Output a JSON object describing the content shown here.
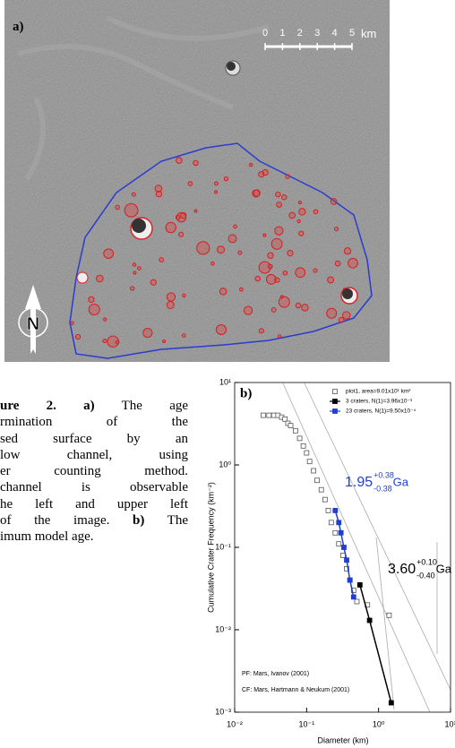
{
  "panel_a": {
    "label": "a)",
    "scale_ticks": [
      0,
      1,
      2,
      3,
      4,
      5
    ],
    "scale_unit": "km",
    "north": "N"
  },
  "caption": [
    [
      "ure 2.",
      "a)",
      "The age"
    ],
    [
      "rmination of the"
    ],
    [
      "sed surface by an"
    ],
    [
      "low channel, using"
    ],
    [
      "er counting method."
    ],
    [
      "channel is observable"
    ],
    [
      "he left and upper left"
    ],
    [
      "of the image.",
      "b)",
      "The"
    ],
    [
      "imum model age."
    ]
  ],
  "chart_data": {
    "type": "scatter",
    "panel_label": "b)",
    "xlabel": "Diameter (km)",
    "ylabel": "Cumulative Crater Frequency (km⁻²)",
    "xscale": "log",
    "yscale": "log",
    "xlim": [
      0.01,
      10
    ],
    "ylim": [
      0.001,
      10
    ],
    "xticks": [
      {
        "value": 0.01,
        "label": "10⁻²"
      },
      {
        "value": 0.1,
        "label": "10⁻¹"
      },
      {
        "value": 1,
        "label": "10⁰"
      },
      {
        "value": 10,
        "label": "10¹"
      }
    ],
    "yticks": [
      {
        "value": 0.001,
        "label": "10⁻³"
      },
      {
        "value": 0.01,
        "label": "10⁻²"
      },
      {
        "value": 0.1,
        "label": "10⁻¹"
      },
      {
        "value": 1,
        "label": "10⁰"
      },
      {
        "value": 10,
        "label": "10¹"
      }
    ],
    "series": [
      {
        "name": "plot1, area=9.01x10¹ km²",
        "color": "#555555",
        "marker": "square-open",
        "line": false,
        "x": [
          0.025,
          0.03,
          0.035,
          0.04,
          0.045,
          0.05,
          0.055,
          0.06,
          0.07,
          0.08,
          0.09,
          0.1,
          0.11,
          0.125,
          0.14,
          0.16,
          0.18,
          0.2,
          0.22,
          0.25,
          0.28,
          0.32,
          0.36,
          0.4,
          0.45,
          0.5,
          0.7,
          1.4
        ],
        "values": [
          4,
          4,
          4,
          4,
          3.8,
          3.6,
          3.2,
          3,
          2.6,
          2.1,
          1.7,
          1.4,
          1.1,
          0.85,
          0.65,
          0.5,
          0.38,
          0.28,
          0.2,
          0.15,
          0.11,
          0.08,
          0.055,
          0.04,
          0.03,
          0.022,
          0.02,
          0.015
        ]
      },
      {
        "name": "3 craters, N(1)=3.96x10⁻³",
        "color": "#000000",
        "marker": "square",
        "line": true,
        "x": [
          0.55,
          0.75,
          1.5
        ],
        "values": [
          0.035,
          0.013,
          0.0013
        ]
      },
      {
        "name": "23 craters, N(1)=9.50x10⁻⁴",
        "color": "#1f3fd0",
        "marker": "square",
        "line": true,
        "x": [
          0.25,
          0.28,
          0.3,
          0.33,
          0.36,
          0.4,
          0.45
        ],
        "values": [
          0.28,
          0.2,
          0.15,
          0.1,
          0.07,
          0.04,
          0.025
        ]
      }
    ],
    "annotations": [
      {
        "text": "1.95",
        "plus": "+0.38",
        "minus": "-0.38",
        "unit": "Ga",
        "color": "#1f3fd0"
      },
      {
        "text": "3.60",
        "plus": "+0.10",
        "minus": "-0.40",
        "unit": "Ga",
        "color": "#000000"
      }
    ],
    "notes": [
      "PF: Mars, Ivanov (2001)",
      "CF: Mars, Hartmann & Neukum (2001)"
    ]
  }
}
